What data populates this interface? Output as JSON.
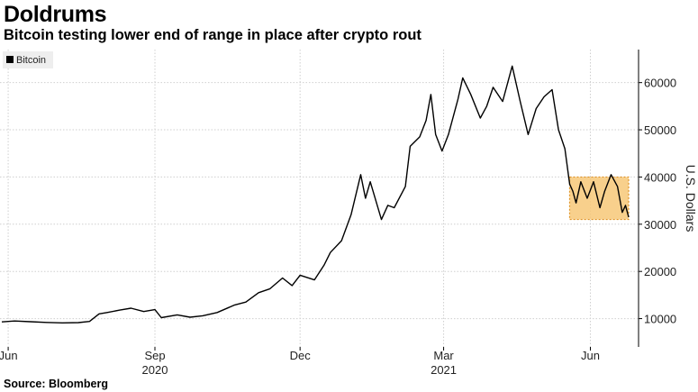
{
  "header": {
    "title": "Doldrums",
    "subtitle": "Bitcoin testing lower end of range in place after crypto rout"
  },
  "footer": {
    "source": "Source: Bloomberg"
  },
  "colors": {
    "line": "#000000",
    "grid": "#cfcfcf",
    "highlight_fill": "#f7c878",
    "highlight_stroke": "#e0952a"
  },
  "chart_data": {
    "type": "line",
    "title": "Doldrums",
    "subtitle": "Bitcoin testing lower end of range in place after crypto rout",
    "ylabel": "U.S. Dollars",
    "xlabel": "",
    "legend": {
      "entries": [
        "Bitcoin"
      ],
      "placement": "top-left"
    },
    "grid": true,
    "ylim": [
      4000,
      67000
    ],
    "xlim": [
      "2020-05-28",
      "2021-06-25"
    ],
    "y_ticks": [
      10000,
      20000,
      30000,
      40000,
      50000,
      60000
    ],
    "x_ticks": [
      {
        "date": "2020-06-01",
        "label": "Jun"
      },
      {
        "date": "2020-09-01",
        "label": "Sep"
      },
      {
        "date": "2020-12-01",
        "label": "Dec"
      },
      {
        "date": "2021-03-01",
        "label": "Mar"
      },
      {
        "date": "2021-06-01",
        "label": "Jun"
      }
    ],
    "year_labels": [
      {
        "date": "2020-09-01",
        "label": "2020"
      },
      {
        "date": "2021-03-01",
        "label": "2021"
      }
    ],
    "highlight_range": {
      "x": [
        "2021-05-19",
        "2021-06-25"
      ],
      "y": [
        31000,
        40000
      ]
    },
    "series": [
      {
        "name": "Bitcoin",
        "points": [
          [
            "2020-05-28",
            9300
          ],
          [
            "2020-06-05",
            9500
          ],
          [
            "2020-06-15",
            9350
          ],
          [
            "2020-06-25",
            9200
          ],
          [
            "2020-07-05",
            9100
          ],
          [
            "2020-07-15",
            9150
          ],
          [
            "2020-07-22",
            9400
          ],
          [
            "2020-07-28",
            11000
          ],
          [
            "2020-08-02",
            11300
          ],
          [
            "2020-08-10",
            11800
          ],
          [
            "2020-08-17",
            12200
          ],
          [
            "2020-08-25",
            11500
          ],
          [
            "2020-09-01",
            11900
          ],
          [
            "2020-09-05",
            10200
          ],
          [
            "2020-09-15",
            10800
          ],
          [
            "2020-09-23",
            10300
          ],
          [
            "2020-10-01",
            10600
          ],
          [
            "2020-10-10",
            11300
          ],
          [
            "2020-10-21",
            12900
          ],
          [
            "2020-10-28",
            13500
          ],
          [
            "2020-11-05",
            15500
          ],
          [
            "2020-11-12",
            16300
          ],
          [
            "2020-11-20",
            18600
          ],
          [
            "2020-11-26",
            17000
          ],
          [
            "2020-12-01",
            19200
          ],
          [
            "2020-12-10",
            18200
          ],
          [
            "2020-12-16",
            21300
          ],
          [
            "2020-12-20",
            24000
          ],
          [
            "2020-12-27",
            26500
          ],
          [
            "2021-01-02",
            32000
          ],
          [
            "2021-01-08",
            40500
          ],
          [
            "2021-01-11",
            35500
          ],
          [
            "2021-01-14",
            39000
          ],
          [
            "2021-01-21",
            31000
          ],
          [
            "2021-01-25",
            34000
          ],
          [
            "2021-01-29",
            33500
          ],
          [
            "2021-02-05",
            38000
          ],
          [
            "2021-02-08",
            46500
          ],
          [
            "2021-02-14",
            48500
          ],
          [
            "2021-02-18",
            52000
          ],
          [
            "2021-02-21",
            57500
          ],
          [
            "2021-02-24",
            49000
          ],
          [
            "2021-02-28",
            45500
          ],
          [
            "2021-03-04",
            49000
          ],
          [
            "2021-03-10",
            56500
          ],
          [
            "2021-03-13",
            61000
          ],
          [
            "2021-03-18",
            57500
          ],
          [
            "2021-03-24",
            52500
          ],
          [
            "2021-03-28",
            55000
          ],
          [
            "2021-04-01",
            59000
          ],
          [
            "2021-04-07",
            56000
          ],
          [
            "2021-04-13",
            63500
          ],
          [
            "2021-04-18",
            56000
          ],
          [
            "2021-04-23",
            49000
          ],
          [
            "2021-04-28",
            54500
          ],
          [
            "2021-05-03",
            57000
          ],
          [
            "2021-05-08",
            58500
          ],
          [
            "2021-05-12",
            50000
          ],
          [
            "2021-05-16",
            46000
          ],
          [
            "2021-05-19",
            38500
          ],
          [
            "2021-05-21",
            37000
          ],
          [
            "2021-05-23",
            34500
          ],
          [
            "2021-05-26",
            39000
          ],
          [
            "2021-05-30",
            35500
          ],
          [
            "2021-06-03",
            39000
          ],
          [
            "2021-06-07",
            33500
          ],
          [
            "2021-06-10",
            37000
          ],
          [
            "2021-06-14",
            40500
          ],
          [
            "2021-06-18",
            38000
          ],
          [
            "2021-06-21",
            32500
          ],
          [
            "2021-06-23",
            34000
          ],
          [
            "2021-06-25",
            31500
          ]
        ]
      }
    ]
  }
}
